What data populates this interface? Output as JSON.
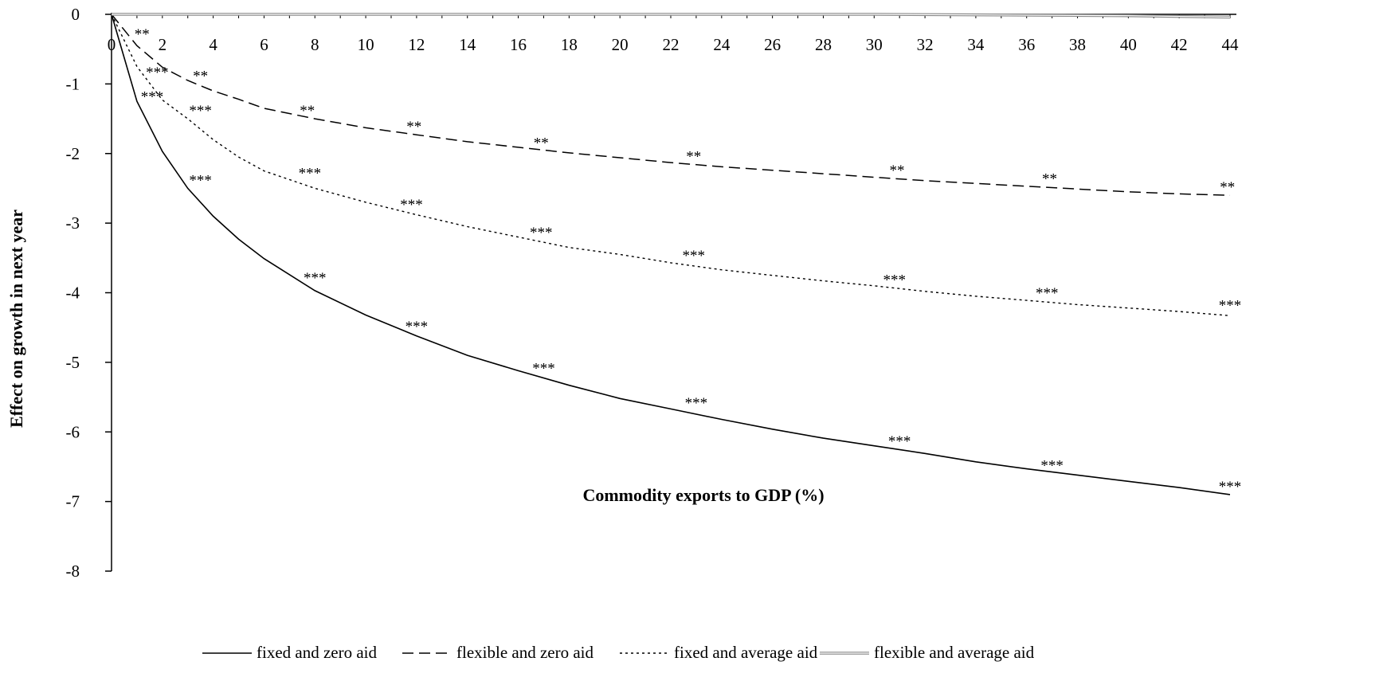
{
  "chart_data": {
    "type": "line",
    "title": "",
    "xlabel": "Commodity exports to GDP (%)",
    "ylabel": "Effect on growth in next year",
    "xlim": [
      0,
      44
    ],
    "ylim": [
      -8,
      0
    ],
    "x_ticks": [
      "0",
      "2",
      "4",
      "6",
      "8",
      "10",
      "12",
      "14",
      "16",
      "18",
      "20",
      "22",
      "24",
      "26",
      "28",
      "30",
      "32",
      "34",
      "36",
      "38",
      "40",
      "42",
      "44"
    ],
    "y_ticks": [
      "0",
      "-1",
      "-2",
      "-3",
      "-4",
      "-5",
      "-6",
      "-7",
      "-8"
    ],
    "grid": false,
    "legend_position": "bottom",
    "series": [
      {
        "name": "fixed and zero aid",
        "style": "solid",
        "color": "#000000",
        "x": [
          0,
          1,
          2,
          3,
          4,
          5,
          6,
          8,
          10,
          12,
          14,
          16,
          18,
          20,
          22,
          24,
          26,
          28,
          30,
          32,
          34,
          36,
          38,
          40,
          42,
          44
        ],
        "y": [
          0,
          -1.25,
          -1.97,
          -2.5,
          -2.9,
          -3.23,
          -3.51,
          -3.97,
          -4.32,
          -4.62,
          -4.9,
          -5.12,
          -5.33,
          -5.52,
          -5.67,
          -5.82,
          -5.96,
          -6.09,
          -6.2,
          -6.31,
          -6.43,
          -6.53,
          -6.62,
          -6.71,
          -6.8,
          -6.9
        ],
        "annotations": [
          {
            "x": 3.5,
            "y": -2.5,
            "label": "***"
          },
          {
            "x": 8,
            "y": -3.9,
            "label": "***"
          },
          {
            "x": 12,
            "y": -4.6,
            "label": "***"
          },
          {
            "x": 17,
            "y": -5.2,
            "label": "***"
          },
          {
            "x": 23,
            "y": -5.7,
            "label": "***"
          },
          {
            "x": 31,
            "y": -6.25,
            "label": "***"
          },
          {
            "x": 37,
            "y": -6.6,
            "label": "***"
          },
          {
            "x": 44,
            "y": -6.9,
            "label": "***"
          }
        ]
      },
      {
        "name": "flexible and zero aid",
        "style": "dashed",
        "color": "#000000",
        "x": [
          0,
          1,
          2,
          3,
          4,
          5,
          6,
          8,
          10,
          12,
          14,
          16,
          18,
          20,
          22,
          24,
          26,
          28,
          30,
          32,
          34,
          36,
          38,
          40,
          42,
          44
        ],
        "y": [
          0,
          -0.45,
          -0.76,
          -0.95,
          -1.1,
          -1.22,
          -1.35,
          -1.5,
          -1.63,
          -1.73,
          -1.83,
          -1.91,
          -1.99,
          -2.06,
          -2.13,
          -2.19,
          -2.24,
          -2.29,
          -2.34,
          -2.39,
          -2.43,
          -2.47,
          -2.51,
          -2.55,
          -2.58,
          -2.6
        ],
        "annotations": [
          {
            "x": 1.2,
            "y": -0.4,
            "label": "**"
          },
          {
            "x": 3.5,
            "y": -1.0,
            "label": "**"
          },
          {
            "x": 7.7,
            "y": -1.5,
            "label": "**"
          },
          {
            "x": 11.9,
            "y": -1.73,
            "label": "**"
          },
          {
            "x": 16.9,
            "y": -1.96,
            "label": "**"
          },
          {
            "x": 22.9,
            "y": -2.16,
            "label": "**"
          },
          {
            "x": 30.9,
            "y": -2.36,
            "label": "**"
          },
          {
            "x": 36.9,
            "y": -2.48,
            "label": "**"
          },
          {
            "x": 43.9,
            "y": -2.6,
            "label": "**"
          }
        ]
      },
      {
        "name": "fixed and average aid",
        "style": "dotted",
        "color": "#000000",
        "x": [
          0,
          1,
          2,
          3,
          4,
          5,
          6,
          8,
          10,
          12,
          14,
          16,
          18,
          20,
          22,
          24,
          26,
          28,
          30,
          32,
          34,
          36,
          38,
          40,
          42,
          44
        ],
        "y": [
          0,
          -0.75,
          -1.23,
          -1.5,
          -1.8,
          -2.05,
          -2.25,
          -2.5,
          -2.7,
          -2.88,
          -3.05,
          -3.2,
          -3.35,
          -3.45,
          -3.57,
          -3.67,
          -3.75,
          -3.83,
          -3.9,
          -3.98,
          -4.05,
          -4.11,
          -4.17,
          -4.22,
          -4.27,
          -4.33
        ],
        "annotations": [
          {
            "x": 1.8,
            "y": -0.95,
            "label": "***"
          },
          {
            "x": 1.6,
            "y": -1.3,
            "label": "***"
          },
          {
            "x": 3.5,
            "y": -1.5,
            "label": "***"
          },
          {
            "x": 7.8,
            "y": -2.4,
            "label": "***"
          },
          {
            "x": 11.8,
            "y": -2.85,
            "label": "***"
          },
          {
            "x": 16.9,
            "y": -3.25,
            "label": "***"
          },
          {
            "x": 22.9,
            "y": -3.58,
            "label": "***"
          },
          {
            "x": 30.8,
            "y": -3.93,
            "label": "***"
          },
          {
            "x": 36.8,
            "y": -4.12,
            "label": "***"
          },
          {
            "x": 44,
            "y": -4.3,
            "label": "***"
          }
        ]
      },
      {
        "name": "flexible and average aid",
        "style": "double",
        "color": "#888888",
        "x": [
          0,
          10,
          20,
          30,
          40,
          44
        ],
        "y": [
          0,
          0,
          0,
          0,
          -0.02,
          -0.04
        ],
        "annotations": []
      }
    ]
  }
}
